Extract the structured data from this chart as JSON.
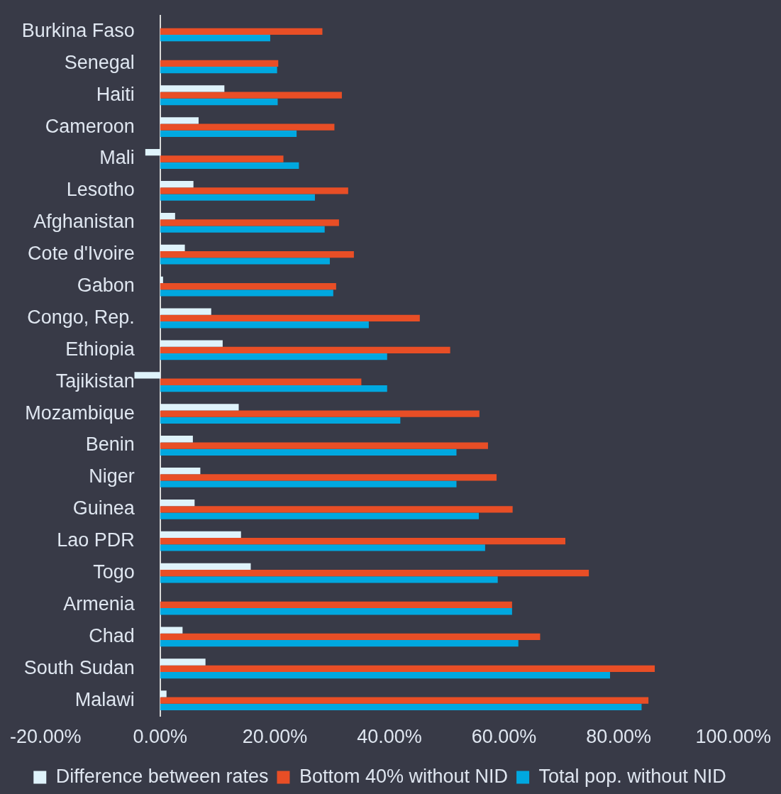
{
  "chart_data": {
    "type": "bar",
    "orientation": "horizontal",
    "categories": [
      "Burkina Faso",
      "Senegal",
      "Haiti",
      "Cameroon",
      "Mali",
      "Lesotho",
      "Afghanistan",
      "Cote d'Ivoire",
      "Gabon",
      "Congo, Rep.",
      "Ethiopia",
      "Tajikistan",
      "Mozambique",
      "Benin",
      "Niger",
      "Guinea",
      "Lao PDR",
      "Togo",
      "Armenia",
      "Chad",
      "South Sudan",
      "Malawi"
    ],
    "series": [
      {
        "name": "Difference between rates",
        "color": "#dff3fb",
        "values": [
          null,
          null,
          11.2,
          6.7,
          -2.6,
          5.8,
          2.6,
          4.3,
          0.5,
          8.9,
          10.9,
          -4.5,
          13.7,
          5.7,
          7.0,
          6.0,
          14.1,
          15.8,
          0,
          3.9,
          7.9,
          1.1
        ]
      },
      {
        "name": "Bottom 40% without NID",
        "color": "#e84e26",
        "values": [
          28.3,
          20.6,
          31.7,
          30.4,
          21.5,
          32.8,
          31.2,
          33.8,
          30.7,
          45.3,
          50.6,
          35.1,
          55.7,
          57.2,
          58.7,
          61.5,
          70.7,
          74.8,
          61.4,
          66.3,
          86.3,
          85.2
        ]
      },
      {
        "name": "Total pop. without NID",
        "color": "#00a8e0",
        "values": [
          19.2,
          20.4,
          20.5,
          23.8,
          24.2,
          27.0,
          28.7,
          29.6,
          30.2,
          36.4,
          39.6,
          39.6,
          41.9,
          51.7,
          51.7,
          55.6,
          56.7,
          58.9,
          61.4,
          62.5,
          78.5,
          84.0
        ]
      }
    ],
    "xlim": [
      -20,
      100
    ],
    "xticks": [
      {
        "value": -20,
        "label": "-20.00%"
      },
      {
        "value": 0,
        "label": "0.00%"
      },
      {
        "value": 20,
        "label": "20.00%"
      },
      {
        "value": 40,
        "label": "40.00%"
      },
      {
        "value": 60,
        "label": "60.00%"
      },
      {
        "value": 80,
        "label": "80.00%"
      },
      {
        "value": 100,
        "label": "100.00%"
      }
    ],
    "grid": false,
    "legend": "bottom"
  }
}
